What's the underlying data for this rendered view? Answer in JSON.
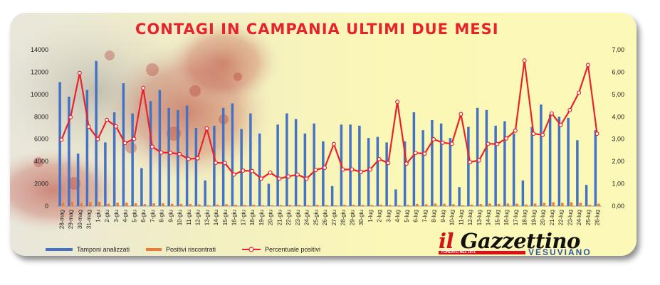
{
  "title": "CONTAGI IN CAMPANIA ULTIMI DUE MESI",
  "brand": {
    "il": "il",
    "name": "Gazzettino",
    "sub": "VESUVIANO",
    "founded": "FONDATO NEL 1971"
  },
  "colors": {
    "bars_tamponi": "#4472c4",
    "bars_positivi": "#ed7d31",
    "line_percent": "#e8232c",
    "title": "#e8232c"
  },
  "chart_data": {
    "type": "bar",
    "title": "CONTAGI IN CAMPANIA ULTIMI DUE MESI",
    "legend_position": "bottom",
    "grid": false,
    "categories": [
      "28-mag",
      "29-mag",
      "30-mag",
      "31-mag",
      "1-giu",
      "2-giu",
      "3-giu",
      "4-giu",
      "5-giu",
      "6-giu",
      "7-giu",
      "8-giu",
      "9-giu",
      "10-giu",
      "11-giu",
      "12-giu",
      "13-giu",
      "14-giu",
      "15-giu",
      "16-giu",
      "17-giu",
      "18-giu",
      "19-giu",
      "20-giu",
      "21-giu",
      "22-giu",
      "23-giu",
      "24-giu",
      "25-giu",
      "26-giu",
      "27-giu",
      "28-giu",
      "29-giu",
      "30-giu",
      "1-lug",
      "2-lug",
      "3-lug",
      "4-lug",
      "5-lug",
      "6-lug",
      "7-lug",
      "8-lug",
      "9-lug",
      "10-lug",
      "11-lug",
      "12-lug",
      "13-lug",
      "14-lug",
      "15-lug",
      "16-lug",
      "17-lug",
      "18-lug",
      "19-lug",
      "20-lug",
      "21-lug",
      "22-lug",
      "23-lug",
      "24-lug",
      "25-lug",
      "26-lug"
    ],
    "y_left": {
      "min": 0,
      "max": 14000,
      "ticks": [
        "0",
        "2000",
        "4000",
        "6000",
        "8000",
        "10000",
        "12000",
        "14000"
      ]
    },
    "y_right": {
      "min": 0,
      "max": 7,
      "ticks": [
        "0,00",
        "1,00",
        "2,00",
        "3,00",
        "4,00",
        "5,00",
        "6,00",
        "7,00"
      ]
    },
    "series": [
      {
        "name": "Tamponi analizzati",
        "type": "bar",
        "axis": "left",
        "values": [
          11100,
          9800,
          4700,
          10400,
          13000,
          5700,
          8400,
          11000,
          8300,
          3400,
          9400,
          10400,
          8800,
          8600,
          9000,
          7000,
          2300,
          7200,
          8800,
          9200,
          6900,
          8300,
          6500,
          2000,
          7300,
          8300,
          7800,
          6500,
          7400,
          5800,
          1800,
          7300,
          7300,
          7200,
          6100,
          6200,
          5700,
          1500,
          5800,
          8400,
          6800,
          7700,
          7400,
          6100,
          1700,
          7100,
          8800,
          8600,
          7200,
          7600,
          6500,
          2300,
          7100,
          9100,
          8200,
          8000,
          7900,
          5900,
          1900,
          6800
        ]
      },
      {
        "name": "Positivi riscontrati",
        "type": "bar",
        "axis": "left",
        "values": [
          330,
          390,
          280,
          370,
          390,
          220,
          300,
          310,
          250,
          180,
          250,
          250,
          210,
          200,
          190,
          150,
          80,
          140,
          170,
          130,
          110,
          130,
          80,
          30,
          90,
          110,
          110,
          80,
          120,
          100,
          50,
          120,
          120,
          110,
          100,
          130,
          110,
          70,
          110,
          200,
          160,
          230,
          210,
          170,
          70,
          140,
          180,
          240,
          200,
          230,
          220,
          150,
          230,
          290,
          340,
          290,
          340,
          300,
          120,
          220
        ]
      },
      {
        "name": "Percentuale positivi",
        "type": "line",
        "axis": "right",
        "values": [
          2.97,
          3.98,
          5.96,
          3.56,
          3.0,
          3.86,
          3.57,
          2.82,
          3.01,
          5.29,
          2.66,
          2.4,
          2.39,
          2.33,
          2.11,
          2.14,
          3.48,
          1.94,
          1.93,
          1.41,
          1.59,
          1.57,
          1.23,
          1.5,
          1.23,
          1.33,
          1.41,
          1.23,
          1.62,
          1.72,
          2.78,
          1.64,
          1.64,
          1.53,
          1.64,
          2.1,
          1.93,
          4.67,
          1.9,
          2.38,
          2.35,
          2.99,
          2.84,
          2.79,
          4.12,
          1.97,
          2.05,
          2.79,
          2.78,
          3.03,
          3.38,
          6.52,
          3.24,
          3.19,
          4.15,
          3.63,
          4.3,
          5.08,
          6.32,
          3.24
        ]
      }
    ]
  }
}
